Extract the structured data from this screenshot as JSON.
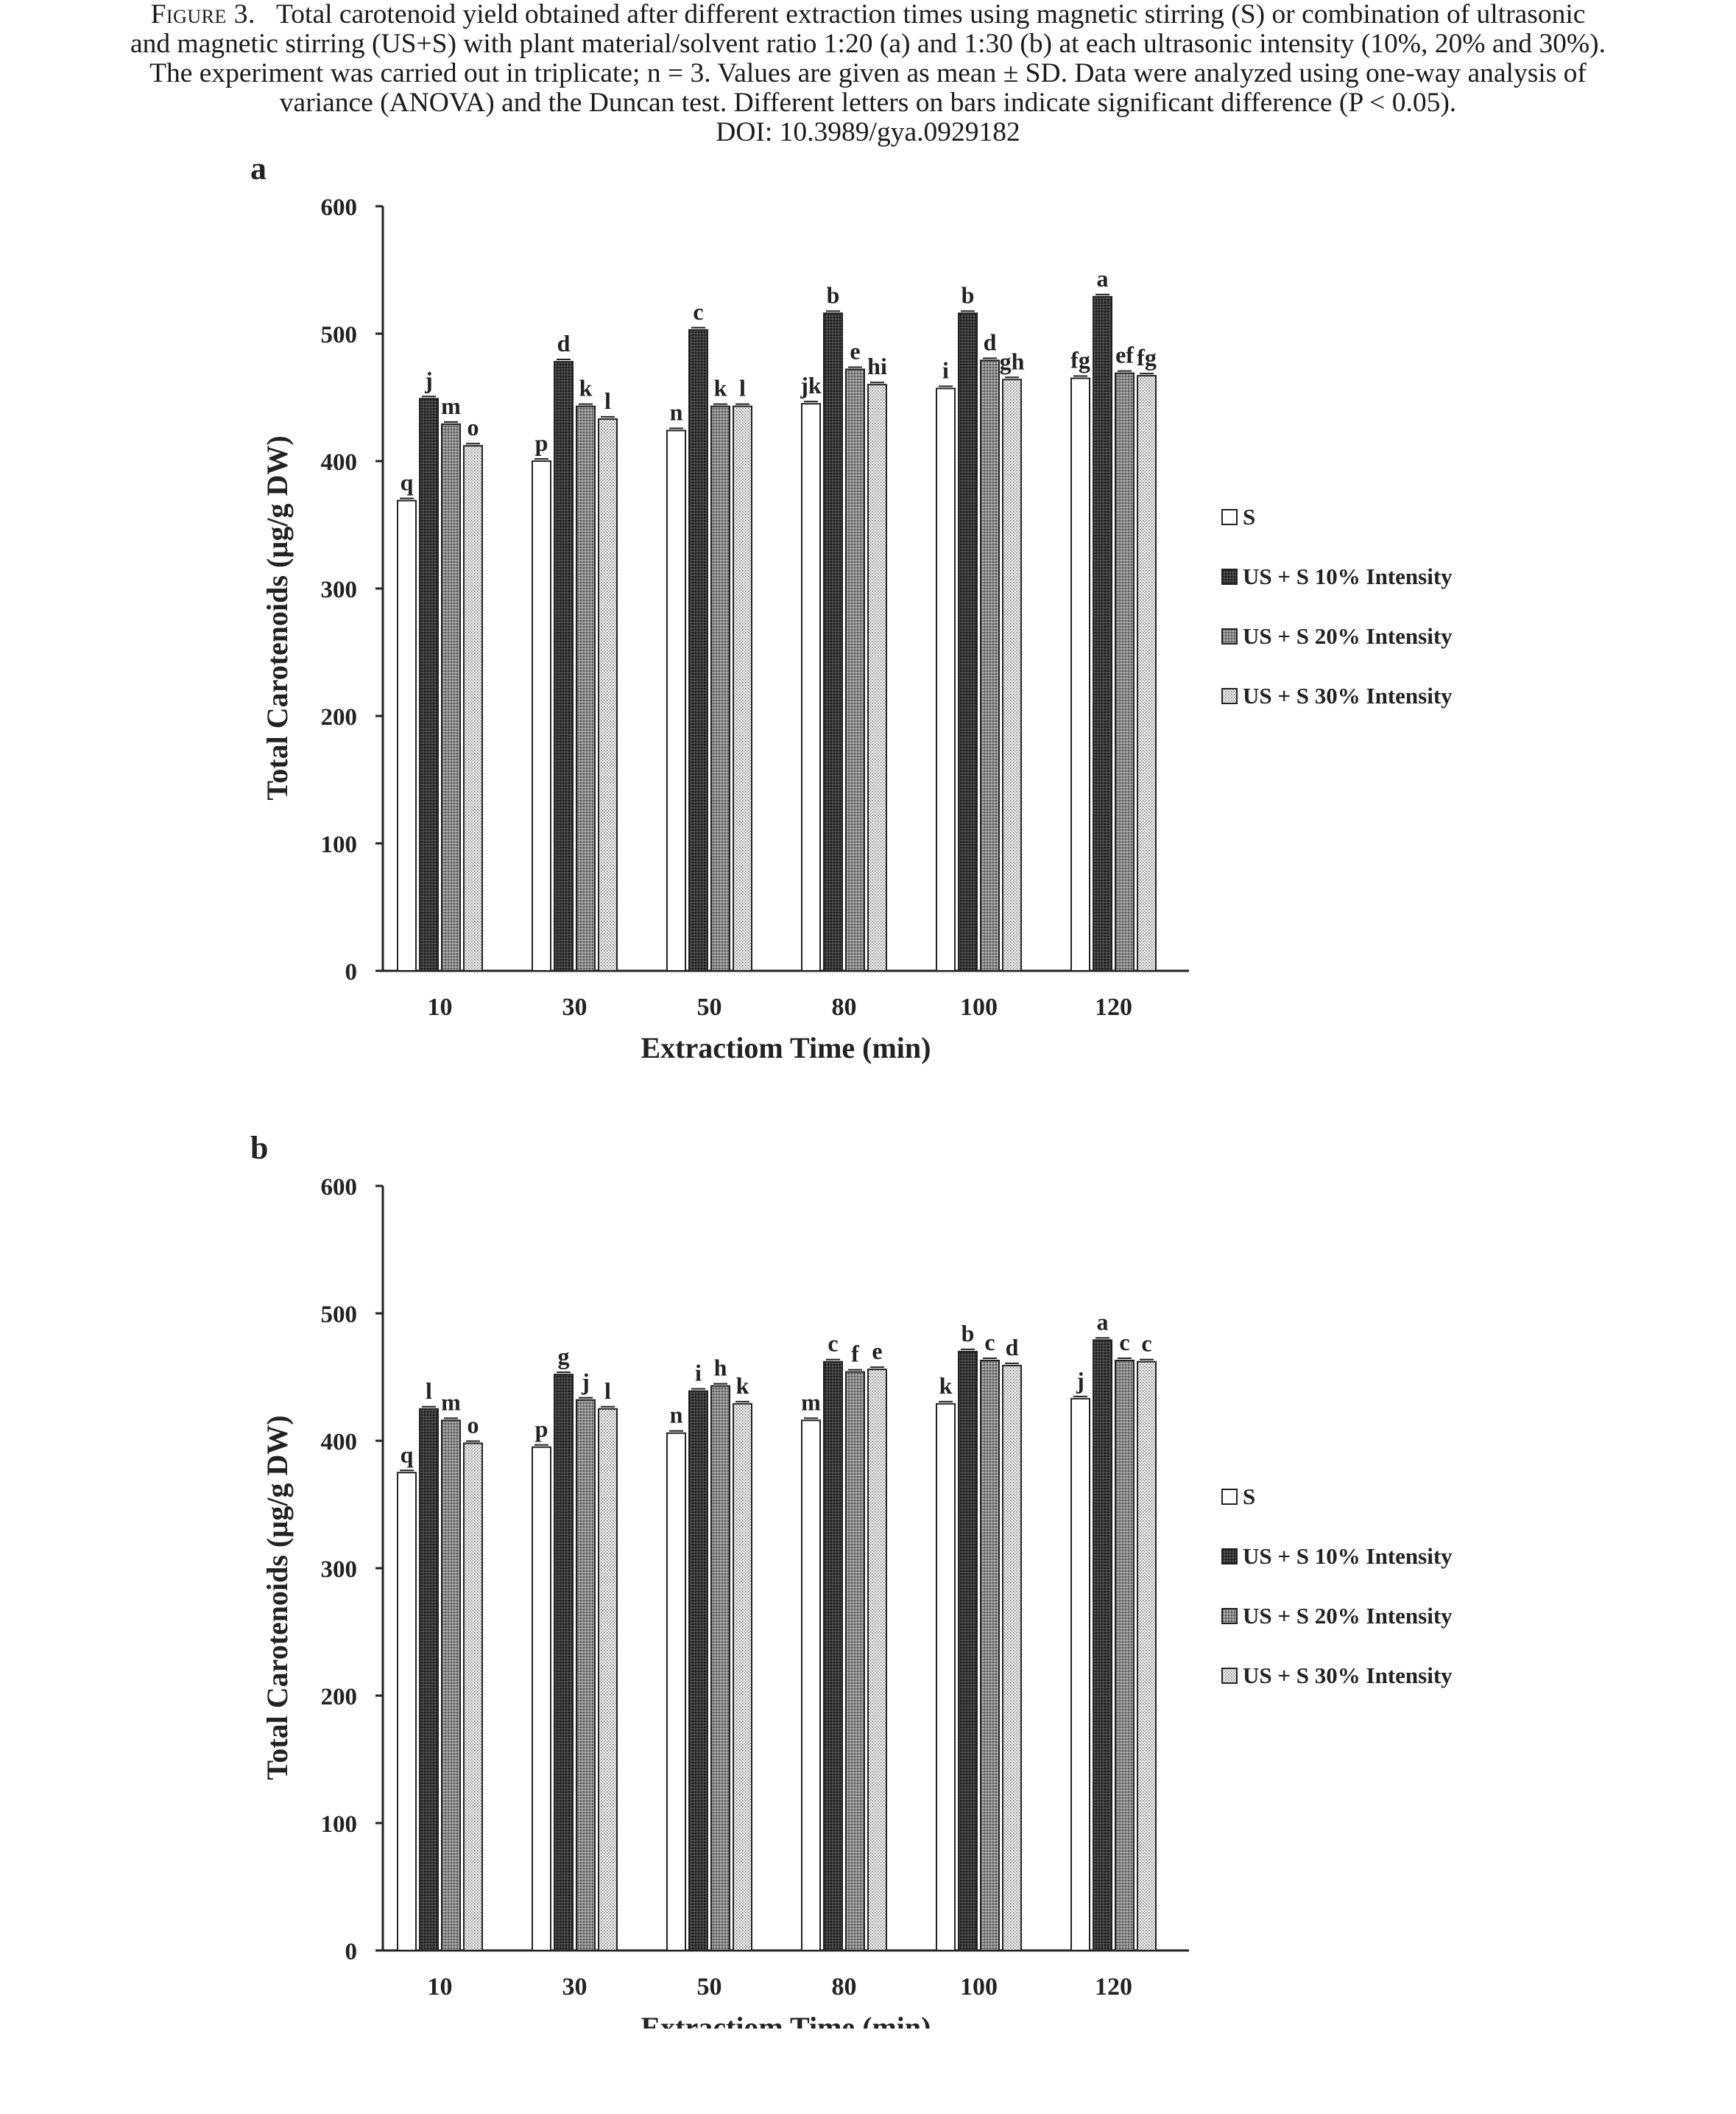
{
  "caption": {
    "line1_label": "Figure 3.",
    "line1_text": "Total carotenoid yield obtained after different extraction times using magnetic stirring (S) or combination of ultrasonic",
    "line2": "and magnetic stirring (US+S) with plant material/solvent ratio 1:20 (a) and 1:30 (b) at each ultrasonic intensity (10%, 20% and 30%).",
    "line3": "The experiment was carried out in triplicate; n = 3. Values are given as mean ± SD. Data were analyzed using one-way analysis of",
    "line4": "variance (ANOVA) and the Duncan test. Different letters on bars indicate significant difference (P < 0.05).",
    "line5": "DOI: 10.3989/gya.0929182"
  },
  "chart_data": [
    {
      "type": "bar",
      "panel_label": "a",
      "categories": [
        "10",
        "30",
        "50",
        "80",
        "100",
        "120"
      ],
      "xlabel": "Extractiom Time (min)",
      "ylabel": "Total Carotenoids (µg/g DW)",
      "ylim": [
        0,
        600
      ],
      "yticks": [
        0,
        100,
        200,
        300,
        400,
        500,
        600
      ],
      "legend_position": "right",
      "series": [
        {
          "name": "S",
          "values": [
            369,
            400,
            424,
            445,
            457,
            465
          ],
          "letters": [
            "q",
            "p",
            "n",
            "jk",
            "i",
            "fg"
          ]
        },
        {
          "name": "US + S 10% Intensity",
          "values": [
            449,
            478,
            503,
            516,
            516,
            529
          ],
          "letters": [
            "j",
            "d",
            "c",
            "b",
            "b",
            "a"
          ]
        },
        {
          "name": "US + S 20% Intensity",
          "values": [
            429,
            443,
            443,
            472,
            479,
            469
          ],
          "letters": [
            "m",
            "k",
            "k",
            "e",
            "d",
            "ef"
          ]
        },
        {
          "name": "US + S 30% Intensity",
          "values": [
            412,
            433,
            443,
            460,
            464,
            467
          ],
          "letters": [
            "o",
            "l",
            "l",
            "hi",
            "gh",
            "fg"
          ]
        }
      ]
    },
    {
      "type": "bar",
      "panel_label": "b",
      "categories": [
        "10",
        "30",
        "50",
        "80",
        "100",
        "120"
      ],
      "xlabel": "Extractiom Time (min)",
      "ylabel": "Total Carotenoids (µg/g DW)",
      "ylim": [
        0,
        600
      ],
      "yticks": [
        0,
        100,
        200,
        300,
        400,
        500,
        600
      ],
      "legend_position": "right",
      "series": [
        {
          "name": "S",
          "values": [
            375,
            395,
            406,
            416,
            429,
            433
          ],
          "letters": [
            "q",
            "p",
            "n",
            "m",
            "k",
            "j"
          ]
        },
        {
          "name": "US + S 10% Intensity",
          "values": [
            425,
            452,
            439,
            462,
            470,
            479
          ],
          "letters": [
            "l",
            "g",
            "i",
            "c",
            "b",
            "a"
          ]
        },
        {
          "name": "US + S 20% Intensity",
          "values": [
            416,
            432,
            443,
            454,
            463,
            463
          ],
          "letters": [
            "m",
            "j",
            "h",
            "f",
            "c",
            "c"
          ]
        },
        {
          "name": "US + S 30% Intensity",
          "values": [
            398,
            425,
            429,
            456,
            459,
            462
          ],
          "letters": [
            "o",
            "l",
            "k",
            "e",
            "d",
            "c"
          ]
        }
      ]
    }
  ]
}
